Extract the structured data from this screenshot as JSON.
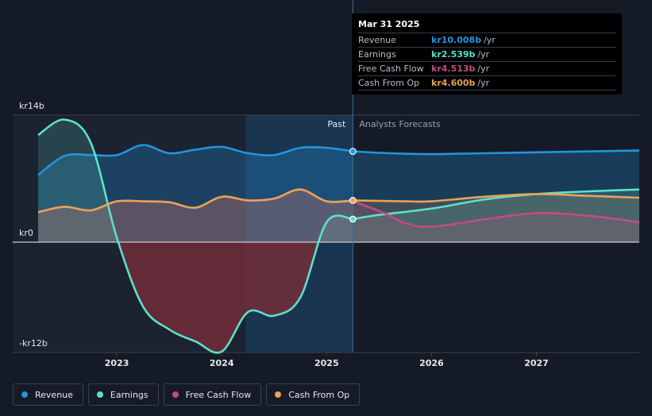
{
  "chart_data": {
    "type": "area",
    "title": "",
    "y_unit_prefix": "kr",
    "ylim": [
      -13,
      15
    ],
    "y_ticks": [
      {
        "value": 14,
        "label": "kr14b"
      },
      {
        "value": 0,
        "label": "kr0"
      },
      {
        "value": -12,
        "label": "-kr12b"
      }
    ],
    "xlim": [
      2022.25,
      2027.98
    ],
    "x_ticks": [
      {
        "value": 2023,
        "label": "2023"
      },
      {
        "value": 2024,
        "label": "2024"
      },
      {
        "value": 2025,
        "label": "2025"
      },
      {
        "value": 2026,
        "label": "2026"
      },
      {
        "value": 2027,
        "label": "2027"
      }
    ],
    "divider_x": 2025.25,
    "past_label": "Past",
    "forecast_label": "Analysts Forecasts",
    "highlight_region": [
      2024.23,
      2025.25
    ],
    "series": [
      {
        "name": "Revenue",
        "color": "#2394df",
        "past": [
          [
            2022.25,
            7.4
          ],
          [
            2022.5,
            9.5
          ],
          [
            2022.75,
            9.6
          ],
          [
            2023.0,
            9.6
          ],
          [
            2023.25,
            10.7
          ],
          [
            2023.5,
            9.8
          ],
          [
            2023.75,
            10.2
          ],
          [
            2024.0,
            10.5
          ],
          [
            2024.25,
            9.8
          ],
          [
            2024.5,
            9.6
          ],
          [
            2024.75,
            10.4
          ],
          [
            2025.0,
            10.4
          ],
          [
            2025.25,
            10.008
          ]
        ],
        "forecast": [
          [
            2025.25,
            10.008
          ],
          [
            2025.6,
            9.8
          ],
          [
            2026.0,
            9.7
          ],
          [
            2026.5,
            9.8
          ],
          [
            2027.0,
            9.9
          ],
          [
            2027.5,
            10.0
          ],
          [
            2027.98,
            10.1
          ]
        ]
      },
      {
        "name": "Earnings",
        "color": "#5de0c8",
        "past": [
          [
            2022.25,
            11.8
          ],
          [
            2022.5,
            13.5
          ],
          [
            2022.75,
            11.0
          ],
          [
            2023.0,
            0.5
          ],
          [
            2023.25,
            -7.0
          ],
          [
            2023.5,
            -9.5
          ],
          [
            2023.75,
            -10.8
          ],
          [
            2024.0,
            -11.9
          ],
          [
            2024.25,
            -7.6
          ],
          [
            2024.5,
            -8.0
          ],
          [
            2024.75,
            -6.0
          ],
          [
            2025.0,
            2.2
          ],
          [
            2025.25,
            2.539
          ]
        ],
        "forecast": [
          [
            2025.25,
            2.539
          ],
          [
            2025.5,
            3.0
          ],
          [
            2026.0,
            3.7
          ],
          [
            2026.5,
            4.7
          ],
          [
            2027.0,
            5.3
          ],
          [
            2027.5,
            5.6
          ],
          [
            2027.98,
            5.8
          ]
        ]
      },
      {
        "name": "Free Cash Flow",
        "color": "#c44a84",
        "past": [
          [
            2022.25,
            3.3
          ],
          [
            2022.5,
            3.9
          ],
          [
            2022.75,
            3.5
          ],
          [
            2023.0,
            4.5
          ],
          [
            2023.25,
            4.5
          ],
          [
            2023.5,
            4.4
          ],
          [
            2023.75,
            3.8
          ],
          [
            2024.0,
            5.0
          ],
          [
            2024.25,
            4.6
          ],
          [
            2024.5,
            4.8
          ],
          [
            2024.75,
            5.8
          ],
          [
            2025.0,
            4.5
          ],
          [
            2025.25,
            4.513
          ]
        ],
        "forecast": [
          [
            2025.25,
            4.513
          ],
          [
            2025.55,
            3.2
          ],
          [
            2025.75,
            2.1
          ],
          [
            2026.0,
            1.7
          ],
          [
            2026.5,
            2.5
          ],
          [
            2027.0,
            3.2
          ],
          [
            2027.5,
            2.9
          ],
          [
            2027.98,
            2.2
          ]
        ]
      },
      {
        "name": "Cash From Op",
        "color": "#e8a257",
        "past": [
          [
            2022.25,
            3.3
          ],
          [
            2022.5,
            3.9
          ],
          [
            2022.75,
            3.5
          ],
          [
            2023.0,
            4.5
          ],
          [
            2023.25,
            4.5
          ],
          [
            2023.5,
            4.4
          ],
          [
            2023.75,
            3.8
          ],
          [
            2024.0,
            5.0
          ],
          [
            2024.25,
            4.6
          ],
          [
            2024.5,
            4.8
          ],
          [
            2024.75,
            5.8
          ],
          [
            2025.0,
            4.5
          ],
          [
            2025.25,
            4.6
          ]
        ],
        "forecast": [
          [
            2025.25,
            4.6
          ],
          [
            2025.75,
            4.5
          ],
          [
            2026.0,
            4.5
          ],
          [
            2026.5,
            5.0
          ],
          [
            2027.0,
            5.3
          ],
          [
            2027.5,
            5.1
          ],
          [
            2027.98,
            4.9
          ]
        ]
      }
    ]
  },
  "tooltip": {
    "date": "Mar 31 2025",
    "rows": [
      {
        "label": "Revenue",
        "value": "kr10.008b",
        "unit": "/yr",
        "color": "#2394df"
      },
      {
        "label": "Earnings",
        "value": "kr2.539b",
        "unit": "/yr",
        "color": "#5de0c8"
      },
      {
        "label": "Free Cash Flow",
        "value": "kr4.513b",
        "unit": "/yr",
        "color": "#c44a84"
      },
      {
        "label": "Cash From Op",
        "value": "kr4.600b",
        "unit": "/yr",
        "color": "#e8a257"
      }
    ]
  },
  "legend": [
    {
      "label": "Revenue",
      "color": "#2394df"
    },
    {
      "label": "Earnings",
      "color": "#5de0c8"
    },
    {
      "label": "Free Cash Flow",
      "color": "#c44a84"
    },
    {
      "label": "Cash From Op",
      "color": "#e8a257"
    }
  ]
}
